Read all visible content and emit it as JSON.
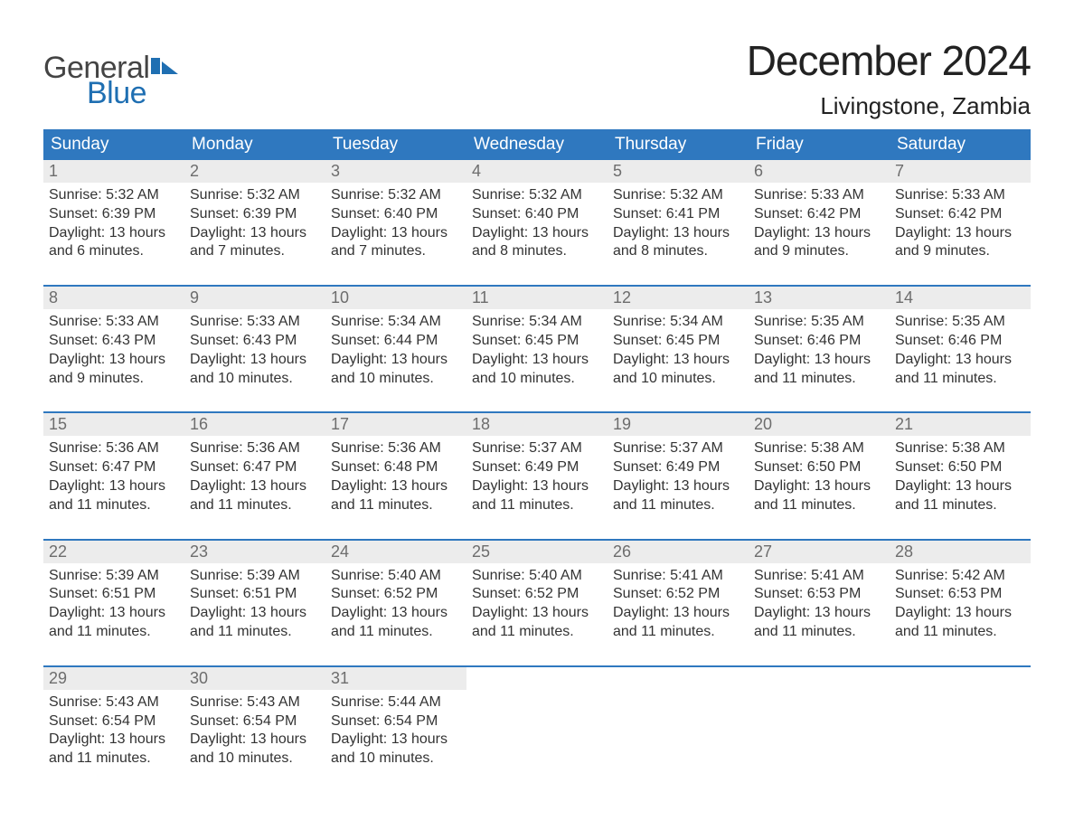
{
  "brand": {
    "part1": "General",
    "part2": "Blue",
    "flag_color": "#1f6fb2",
    "text_gray": "#444444"
  },
  "title": "December 2024",
  "location": "Livingstone, Zambia",
  "colors": {
    "header_bg": "#2f78bf",
    "header_text": "#ffffff",
    "daynum_bg": "#ececec",
    "daynum_text": "#6d6d6d",
    "body_text": "#333333",
    "week_divider": "#2f78bf",
    "page_bg": "#ffffff"
  },
  "fonts": {
    "title_size_pt": 34,
    "location_size_pt": 20,
    "header_size_pt": 14,
    "body_size_pt": 12
  },
  "day_headers": [
    "Sunday",
    "Monday",
    "Tuesday",
    "Wednesday",
    "Thursday",
    "Friday",
    "Saturday"
  ],
  "weeks": [
    [
      {
        "n": "1",
        "sunrise": "5:32 AM",
        "sunset": "6:39 PM",
        "daylight": "13 hours and 6 minutes."
      },
      {
        "n": "2",
        "sunrise": "5:32 AM",
        "sunset": "6:39 PM",
        "daylight": "13 hours and 7 minutes."
      },
      {
        "n": "3",
        "sunrise": "5:32 AM",
        "sunset": "6:40 PM",
        "daylight": "13 hours and 7 minutes."
      },
      {
        "n": "4",
        "sunrise": "5:32 AM",
        "sunset": "6:40 PM",
        "daylight": "13 hours and 8 minutes."
      },
      {
        "n": "5",
        "sunrise": "5:32 AM",
        "sunset": "6:41 PM",
        "daylight": "13 hours and 8 minutes."
      },
      {
        "n": "6",
        "sunrise": "5:33 AM",
        "sunset": "6:42 PM",
        "daylight": "13 hours and 9 minutes."
      },
      {
        "n": "7",
        "sunrise": "5:33 AM",
        "sunset": "6:42 PM",
        "daylight": "13 hours and 9 minutes."
      }
    ],
    [
      {
        "n": "8",
        "sunrise": "5:33 AM",
        "sunset": "6:43 PM",
        "daylight": "13 hours and 9 minutes."
      },
      {
        "n": "9",
        "sunrise": "5:33 AM",
        "sunset": "6:43 PM",
        "daylight": "13 hours and 10 minutes."
      },
      {
        "n": "10",
        "sunrise": "5:34 AM",
        "sunset": "6:44 PM",
        "daylight": "13 hours and 10 minutes."
      },
      {
        "n": "11",
        "sunrise": "5:34 AM",
        "sunset": "6:45 PM",
        "daylight": "13 hours and 10 minutes."
      },
      {
        "n": "12",
        "sunrise": "5:34 AM",
        "sunset": "6:45 PM",
        "daylight": "13 hours and 10 minutes."
      },
      {
        "n": "13",
        "sunrise": "5:35 AM",
        "sunset": "6:46 PM",
        "daylight": "13 hours and 11 minutes."
      },
      {
        "n": "14",
        "sunrise": "5:35 AM",
        "sunset": "6:46 PM",
        "daylight": "13 hours and 11 minutes."
      }
    ],
    [
      {
        "n": "15",
        "sunrise": "5:36 AM",
        "sunset": "6:47 PM",
        "daylight": "13 hours and 11 minutes."
      },
      {
        "n": "16",
        "sunrise": "5:36 AM",
        "sunset": "6:47 PM",
        "daylight": "13 hours and 11 minutes."
      },
      {
        "n": "17",
        "sunrise": "5:36 AM",
        "sunset": "6:48 PM",
        "daylight": "13 hours and 11 minutes."
      },
      {
        "n": "18",
        "sunrise": "5:37 AM",
        "sunset": "6:49 PM",
        "daylight": "13 hours and 11 minutes."
      },
      {
        "n": "19",
        "sunrise": "5:37 AM",
        "sunset": "6:49 PM",
        "daylight": "13 hours and 11 minutes."
      },
      {
        "n": "20",
        "sunrise": "5:38 AM",
        "sunset": "6:50 PM",
        "daylight": "13 hours and 11 minutes."
      },
      {
        "n": "21",
        "sunrise": "5:38 AM",
        "sunset": "6:50 PM",
        "daylight": "13 hours and 11 minutes."
      }
    ],
    [
      {
        "n": "22",
        "sunrise": "5:39 AM",
        "sunset": "6:51 PM",
        "daylight": "13 hours and 11 minutes."
      },
      {
        "n": "23",
        "sunrise": "5:39 AM",
        "sunset": "6:51 PM",
        "daylight": "13 hours and 11 minutes."
      },
      {
        "n": "24",
        "sunrise": "5:40 AM",
        "sunset": "6:52 PM",
        "daylight": "13 hours and 11 minutes."
      },
      {
        "n": "25",
        "sunrise": "5:40 AM",
        "sunset": "6:52 PM",
        "daylight": "13 hours and 11 minutes."
      },
      {
        "n": "26",
        "sunrise": "5:41 AM",
        "sunset": "6:52 PM",
        "daylight": "13 hours and 11 minutes."
      },
      {
        "n": "27",
        "sunrise": "5:41 AM",
        "sunset": "6:53 PM",
        "daylight": "13 hours and 11 minutes."
      },
      {
        "n": "28",
        "sunrise": "5:42 AM",
        "sunset": "6:53 PM",
        "daylight": "13 hours and 11 minutes."
      }
    ],
    [
      {
        "n": "29",
        "sunrise": "5:43 AM",
        "sunset": "6:54 PM",
        "daylight": "13 hours and 11 minutes."
      },
      {
        "n": "30",
        "sunrise": "5:43 AM",
        "sunset": "6:54 PM",
        "daylight": "13 hours and 10 minutes."
      },
      {
        "n": "31",
        "sunrise": "5:44 AM",
        "sunset": "6:54 PM",
        "daylight": "13 hours and 10 minutes."
      },
      null,
      null,
      null,
      null
    ]
  ],
  "labels": {
    "sunrise": "Sunrise: ",
    "sunset": "Sunset: ",
    "daylight": "Daylight: "
  }
}
